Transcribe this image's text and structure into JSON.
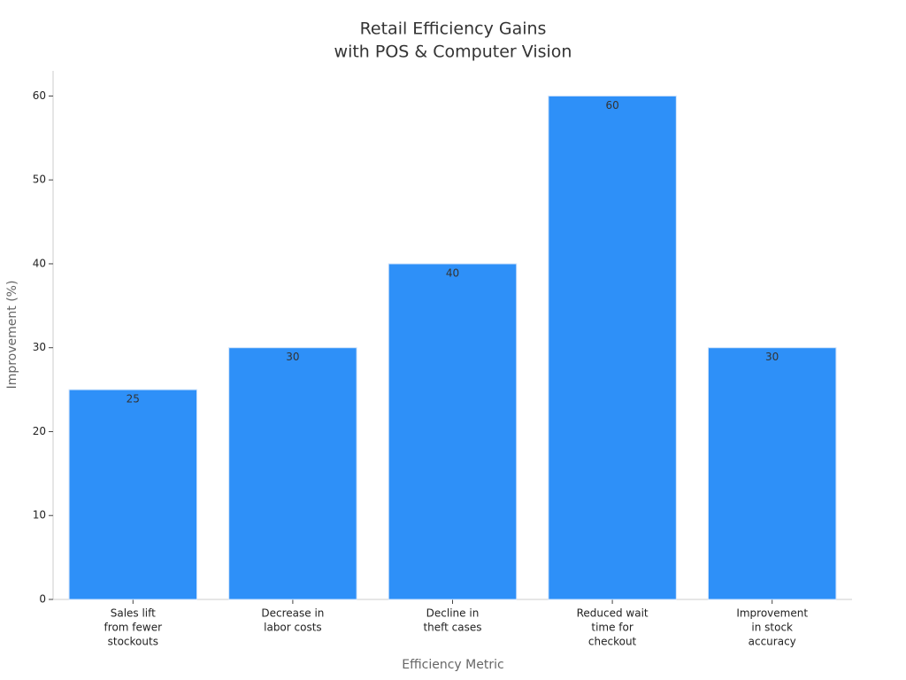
{
  "chart_data": {
    "type": "bar",
    "title": [
      "Retail Efficiency Gains",
      "with POS & Computer Vision"
    ],
    "x_label": "Efficiency Metric",
    "y_label": "Improvement (%)",
    "categories": [
      [
        "Sales lift",
        "from fewer",
        "stockouts"
      ],
      [
        "Decrease in",
        "labor costs"
      ],
      [
        "Decline in",
        "theft cases"
      ],
      [
        "Reduced wait",
        "time for",
        "checkout"
      ],
      [
        "Improvement",
        "in stock",
        "accuracy"
      ]
    ],
    "values": [
      25,
      30,
      40,
      60,
      30
    ],
    "color": "#2e90f8",
    "ylim": [
      0,
      63
    ],
    "yticks": [
      0,
      10,
      20,
      30,
      40,
      50,
      60
    ],
    "grid": false
  }
}
